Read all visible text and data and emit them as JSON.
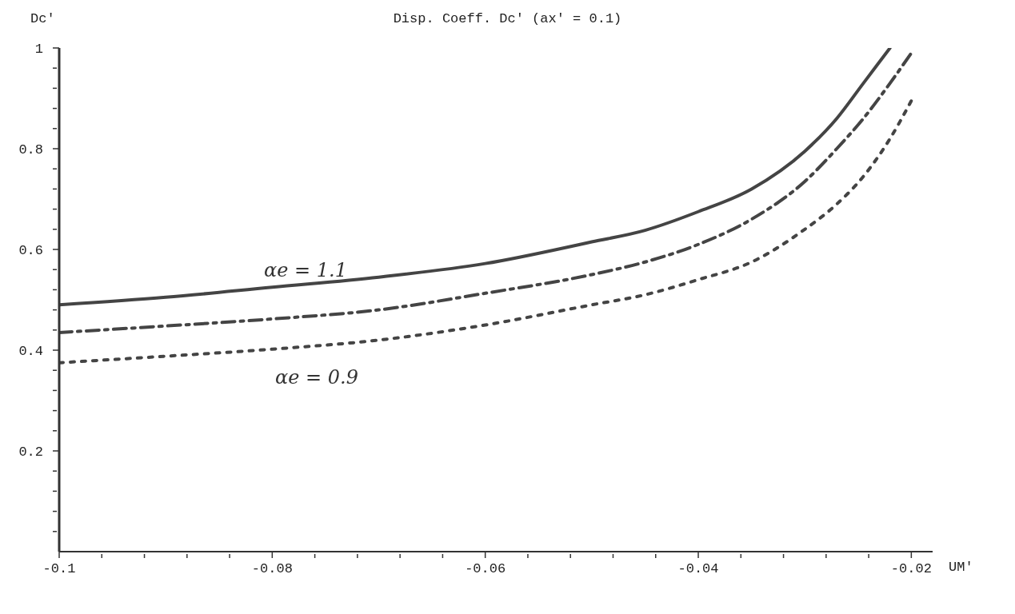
{
  "chart_data": {
    "type": "line",
    "title": "Disp. Coeff. Dc′ (ax′ = 0.1)",
    "xlabel": "UM′",
    "ylabel": "Dc′",
    "xlim": [
      -0.1,
      -0.018
    ],
    "ylim": [
      0,
      1
    ],
    "xticks": [
      -0.1,
      {
        "value": -0.096,
        "label": null
      },
      {
        "value": -0.092,
        "label": null
      },
      {
        "value": -0.088,
        "label": null
      },
      {
        "value": -0.084,
        "label": null
      },
      -0.08,
      {
        "value": -0.076,
        "label": null
      },
      {
        "value": -0.072,
        "label": null
      },
      {
        "value": -0.068,
        "label": null
      },
      {
        "value": -0.064,
        "label": null
      },
      -0.06,
      {
        "value": -0.056,
        "label": null
      },
      {
        "value": -0.052,
        "label": null
      },
      {
        "value": -0.048,
        "label": null
      },
      {
        "value": -0.044,
        "label": null
      },
      -0.04,
      {
        "value": -0.036,
        "label": null
      },
      {
        "value": -0.032,
        "label": null
      },
      {
        "value": -0.028,
        "label": null
      },
      {
        "value": -0.024,
        "label": null
      },
      -0.02
    ],
    "yticks": [
      {
        "value": 0.04,
        "label": null
      },
      {
        "value": 0.08,
        "label": null
      },
      {
        "value": 0.12,
        "label": null
      },
      {
        "value": 0.16,
        "label": null
      },
      0.2,
      {
        "value": 0.24,
        "label": null
      },
      {
        "value": 0.28,
        "label": null
      },
      {
        "value": 0.32,
        "label": null
      },
      {
        "value": 0.36,
        "label": null
      },
      0.4,
      {
        "value": 0.44,
        "label": null
      },
      {
        "value": 0.48,
        "label": null
      },
      {
        "value": 0.52,
        "label": null
      },
      {
        "value": 0.56,
        "label": null
      },
      0.6,
      {
        "value": 0.64,
        "label": null
      },
      {
        "value": 0.68,
        "label": null
      },
      {
        "value": 0.72,
        "label": null
      },
      {
        "value": 0.76,
        "label": null
      },
      0.8,
      {
        "value": 0.84,
        "label": null
      },
      {
        "value": 0.88,
        "label": null
      },
      {
        "value": 0.92,
        "label": null
      },
      {
        "value": 0.96,
        "label": null
      },
      1
    ],
    "series": [
      {
        "color": "#444444",
        "line_style": "solid",
        "x": [
          -0.1,
          -0.09,
          -0.08,
          -0.07,
          -0.06,
          -0.05,
          -0.045,
          -0.04,
          -0.035,
          -0.03,
          -0.027,
          -0.0245,
          -0.022
        ],
        "values": [
          0.49,
          0.505,
          0.525,
          0.545,
          0.572,
          0.615,
          0.638,
          0.675,
          0.72,
          0.795,
          0.86,
          0.93,
          1.0
        ]
      },
      {
        "color": "#444444",
        "line_style": "dashed",
        "x": [
          -0.1,
          -0.09,
          -0.08,
          -0.07,
          -0.06,
          -0.05,
          -0.045,
          -0.04,
          -0.035,
          -0.03,
          -0.027,
          -0.0245,
          -0.022,
          -0.02
        ],
        "values": [
          0.435,
          0.448,
          0.462,
          0.48,
          0.513,
          0.55,
          0.575,
          0.61,
          0.66,
          0.735,
          0.8,
          0.86,
          0.93,
          0.99
        ]
      },
      {
        "color": "#444444",
        "line_style": "dotted",
        "x": [
          -0.1,
          -0.09,
          -0.08,
          -0.07,
          -0.06,
          -0.05,
          -0.045,
          -0.04,
          -0.035,
          -0.03,
          -0.027,
          -0.0245,
          -0.022,
          -0.02
        ],
        "values": [
          0.375,
          0.388,
          0.402,
          0.42,
          0.45,
          0.49,
          0.51,
          0.54,
          0.575,
          0.64,
          0.69,
          0.745,
          0.82,
          0.895
        ]
      }
    ],
    "annotations": [
      "αe = 1.1",
      "αe = 0.9"
    ]
  }
}
